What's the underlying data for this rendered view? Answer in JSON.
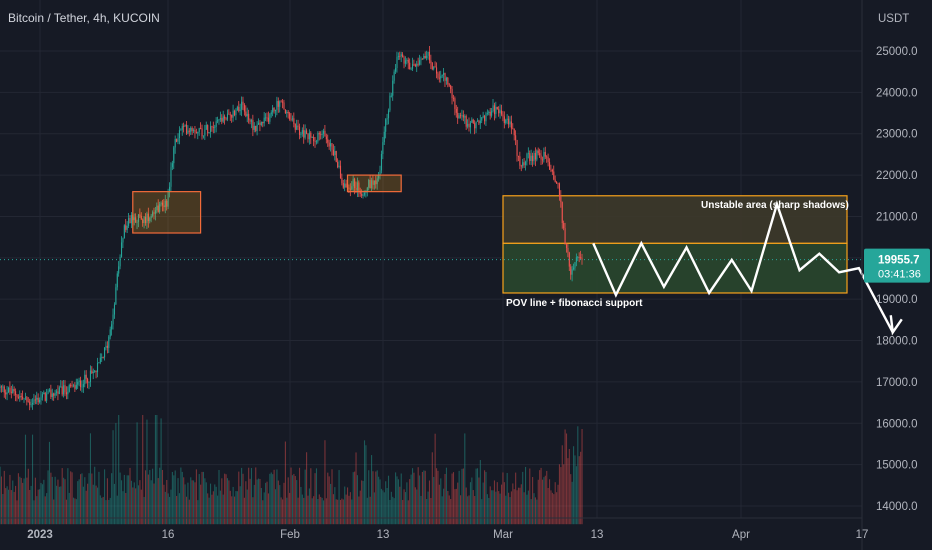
{
  "chart_data": {
    "type": "candlestick",
    "title": "Bitcoin / Tether, 4h, KUCOIN",
    "currency_label": "USDT",
    "y_ticks": [
      "25000.0",
      "24000.0",
      "23000.0",
      "22000.0",
      "21000.0",
      "20000.0",
      "19000.0",
      "18000.0",
      "17000.0",
      "16000.0",
      "15000.0",
      "14000.0"
    ],
    "ylim": [
      13850,
      25900
    ],
    "x_ticks": [
      "2023",
      "16",
      "Feb",
      "13",
      "Mar",
      "13",
      "Apr",
      "17"
    ],
    "last_price": "19955.7",
    "last_price_value": 19955.7,
    "countdown": "03:41:36",
    "price_path": [
      [
        0,
        16850
      ],
      [
        12,
        16700
      ],
      [
        20,
        16500
      ],
      [
        28,
        16600
      ],
      [
        40,
        16750
      ],
      [
        52,
        16850
      ],
      [
        60,
        17050
      ],
      [
        68,
        17250
      ],
      [
        76,
        17900
      ],
      [
        80,
        18700
      ],
      [
        84,
        19800
      ],
      [
        88,
        20700
      ],
      [
        94,
        21000
      ],
      [
        102,
        20900
      ],
      [
        110,
        21200
      ],
      [
        118,
        21350
      ],
      [
        124,
        22800
      ],
      [
        128,
        23100
      ],
      [
        136,
        23150
      ],
      [
        144,
        23050
      ],
      [
        154,
        23350
      ],
      [
        162,
        23400
      ],
      [
        170,
        23700
      ],
      [
        180,
        23150
      ],
      [
        188,
        23300
      ],
      [
        198,
        23800
      ],
      [
        204,
        23400
      ],
      [
        212,
        23050
      ],
      [
        220,
        22900
      ],
      [
        230,
        23000
      ],
      [
        238,
        22400
      ],
      [
        244,
        21700
      ],
      [
        250,
        21800
      ],
      [
        256,
        21600
      ],
      [
        262,
        21800
      ],
      [
        268,
        21950
      ],
      [
        274,
        23500
      ],
      [
        278,
        24200
      ],
      [
        282,
        24900
      ],
      [
        290,
        24600
      ],
      [
        296,
        24800
      ],
      [
        302,
        24950
      ],
      [
        308,
        24500
      ],
      [
        316,
        24300
      ],
      [
        324,
        23500
      ],
      [
        332,
        23200
      ],
      [
        340,
        23300
      ],
      [
        348,
        23600
      ],
      [
        356,
        23400
      ],
      [
        362,
        23150
      ],
      [
        368,
        22300
      ],
      [
        374,
        22400
      ],
      [
        380,
        22500
      ],
      [
        386,
        22450
      ],
      [
        392,
        22000
      ],
      [
        396,
        21600
      ],
      [
        400,
        20300
      ],
      [
        404,
        19700
      ],
      [
        408,
        19900
      ],
      [
        412,
        20000
      ]
    ],
    "volume_max": 16200,
    "volume_base": 13850,
    "annotations": [
      {
        "label": "Unstable area (sharp shadows)",
        "text": "Unstable area (sharp shadows)"
      },
      {
        "label": "POV line + fibonacci support",
        "text": "POV line + fibonacci support"
      }
    ],
    "zones": [
      {
        "y_top": 21500,
        "y_bottom": 20350,
        "fill": "#3d3a2a",
        "stroke": "#f7a21b"
      },
      {
        "y_top": 20350,
        "y_bottom": 19150,
        "fill": "#29472d",
        "stroke": "#f7a21b"
      }
    ],
    "highlight_boxes": [
      {
        "x_from": 94,
        "x_to": 142,
        "y_top": 21600,
        "y_bottom": 20600
      },
      {
        "x_from": 246,
        "x_to": 284,
        "y_top": 22000,
        "y_bottom": 21600
      }
    ],
    "projection_path": [
      [
        420,
        20350
      ],
      [
        436,
        19100
      ],
      [
        454,
        20350
      ],
      [
        470,
        19300
      ],
      [
        486,
        20250
      ],
      [
        502,
        19150
      ],
      [
        518,
        19950
      ],
      [
        532,
        19200
      ],
      [
        550,
        21300
      ],
      [
        566,
        19700
      ],
      [
        580,
        20100
      ],
      [
        594,
        19650
      ],
      [
        608,
        19750
      ],
      [
        632,
        18200
      ]
    ],
    "colors": {
      "background": "#161a25",
      "grid": "#232733",
      "bull": "#26a69a",
      "bear": "#ef5350",
      "zone_stroke": "#f7a21b",
      "price_tag": "#26a69a",
      "projection": "#ffffff"
    },
    "grid": true
  }
}
